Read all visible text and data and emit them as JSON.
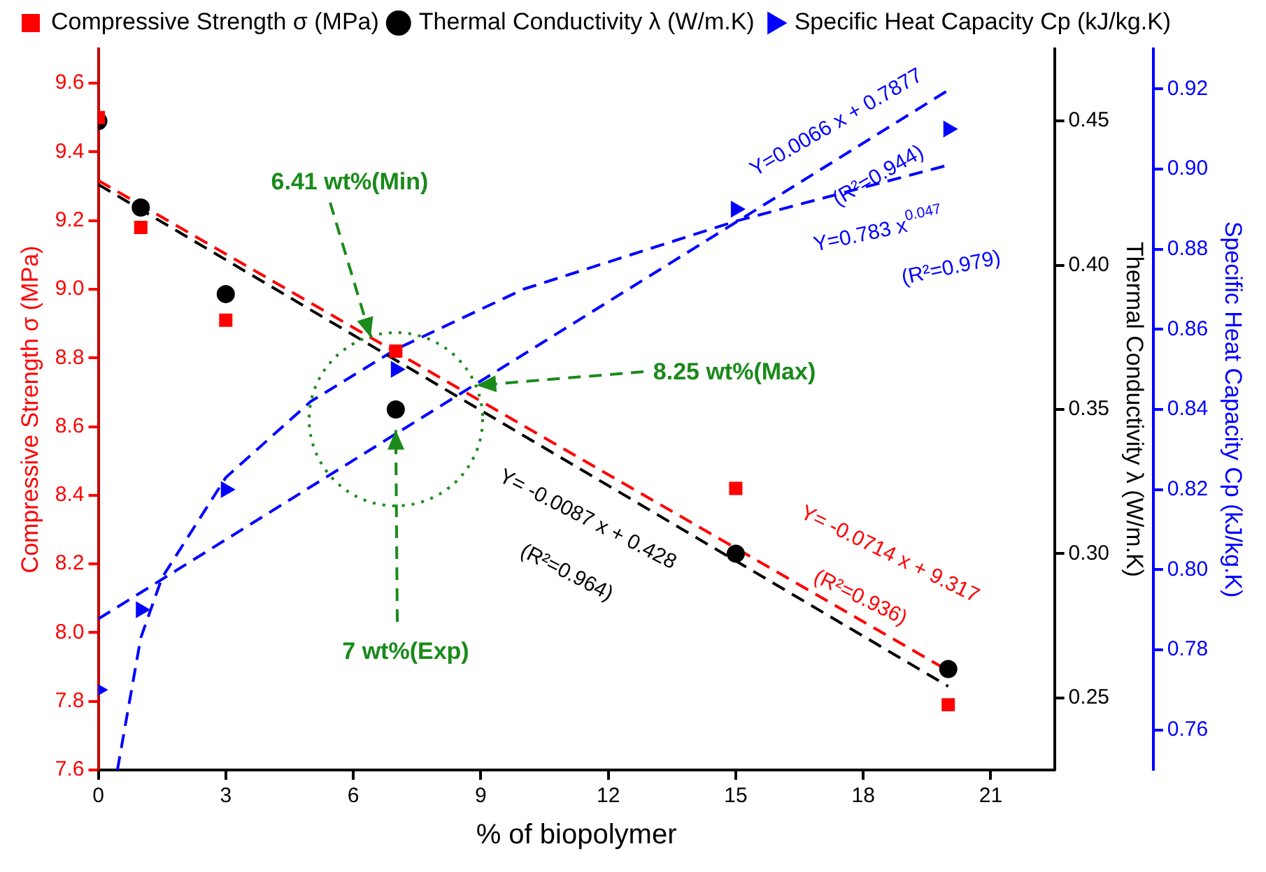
{
  "chart_data": {
    "type": "scatter",
    "xlabel": "% of biopolymer",
    "ylabel": "Compressive Strength σ (MPa)",
    "y2label": "Thermal Conductivity λ (W/m.K)",
    "y3label": "Specific Heat Capacity Cp (kJ/kg.K)",
    "x": [
      0,
      1,
      3,
      7,
      15,
      20
    ],
    "xlim": [
      0,
      22.5
    ],
    "xticks": [
      0,
      3,
      6,
      9,
      12,
      15,
      18,
      21
    ],
    "ylim": [
      7.6,
      9.7
    ],
    "yticks": [
      7.6,
      7.8,
      {
        "value": 8,
        "label": "8.0"
      },
      8.2,
      8.4,
      8.6,
      8.8,
      {
        "value": 9,
        "label": "9.0"
      },
      9.2,
      9.4,
      9.6
    ],
    "y2lim": [
      0.225,
      0.475
    ],
    "y2ticks": [
      0.25,
      {
        "value": 0.3,
        "label": "0.30"
      },
      0.35,
      {
        "value": 0.4,
        "label": "0.40"
      },
      0.45
    ],
    "y3lim": [
      0.75,
      0.93
    ],
    "y3ticks": [
      0.76,
      0.78,
      {
        "value": 0.8,
        "label": "0.80"
      },
      0.82,
      0.84,
      0.86,
      0.88,
      {
        "value": 0.9,
        "label": "0.90"
      },
      0.92
    ],
    "grid": false,
    "legend": "top left",
    "series": [
      {
        "name": "Compressive Strength σ (MPa)",
        "color": "#ff0000",
        "marker": "square",
        "values": [
          9.5,
          9.18,
          8.91,
          8.82,
          8.42,
          7.79
        ]
      },
      {
        "name": "Thermal Conductivity λ (W/m.K)",
        "color": "#000000",
        "marker": "circle",
        "axis": "y2",
        "values": [
          0.45,
          0.42,
          0.39,
          0.35,
          0.3,
          0.26
        ]
      },
      {
        "name": "Specific Heat Capacity Cp (kJ/kg.K)",
        "color": "#0000ff",
        "marker": "triangle",
        "axis": "y3",
        "values": [
          0.77,
          0.79,
          0.82,
          0.85,
          0.89,
          0.91
        ]
      },
      {
        "type": "line",
        "color": "#ff0000",
        "line_style": "dashed",
        "marker": "none",
        "x": [
          0,
          20
        ],
        "values": [
          9.317,
          7.889
        ]
      },
      {
        "type": "line",
        "color": "#000000",
        "line_style": "dashed",
        "marker": "none",
        "axis": "y2",
        "x": [
          0,
          20
        ],
        "values": [
          0.428,
          0.254
        ]
      },
      {
        "type": "line",
        "color": "#0000ff",
        "line_style": "dashed",
        "marker": "none",
        "axis": "y3",
        "x": [
          0,
          20
        ],
        "values": [
          0.7877,
          0.9197
        ]
      },
      {
        "type": "line",
        "color": "#0000ff",
        "line_style": "dashed",
        "marker": "none",
        "axis": "y3",
        "x": [
          0.45,
          1,
          1.5,
          3,
          5,
          7,
          10,
          15,
          20
        ],
        "values": [
          0.75,
          0.783,
          0.798,
          0.823,
          0.842,
          0.855,
          0.87,
          0.887,
          0.901
        ]
      }
    ],
    "annotations": [
      {
        "text": "6.41 wt%(Min)",
        "x": 6.41,
        "y": 8.86
      },
      {
        "text": "8.25 wt%(Max)",
        "x": 8.9,
        "y": 8.72
      },
      {
        "text": "7 wt%(Exp)",
        "x": 7,
        "y": 8.59
      },
      "Y=0.0066 x + 0.7877",
      "(R²=0.944)",
      "Y=0.783 x$^{0.047}$",
      "(R²=0.979)",
      "Y= -0.0087 x + 0.428",
      "(R²=0.964)",
      "Y= -0.0714 x + 9.317",
      "(R²=0.936)"
    ]
  }
}
